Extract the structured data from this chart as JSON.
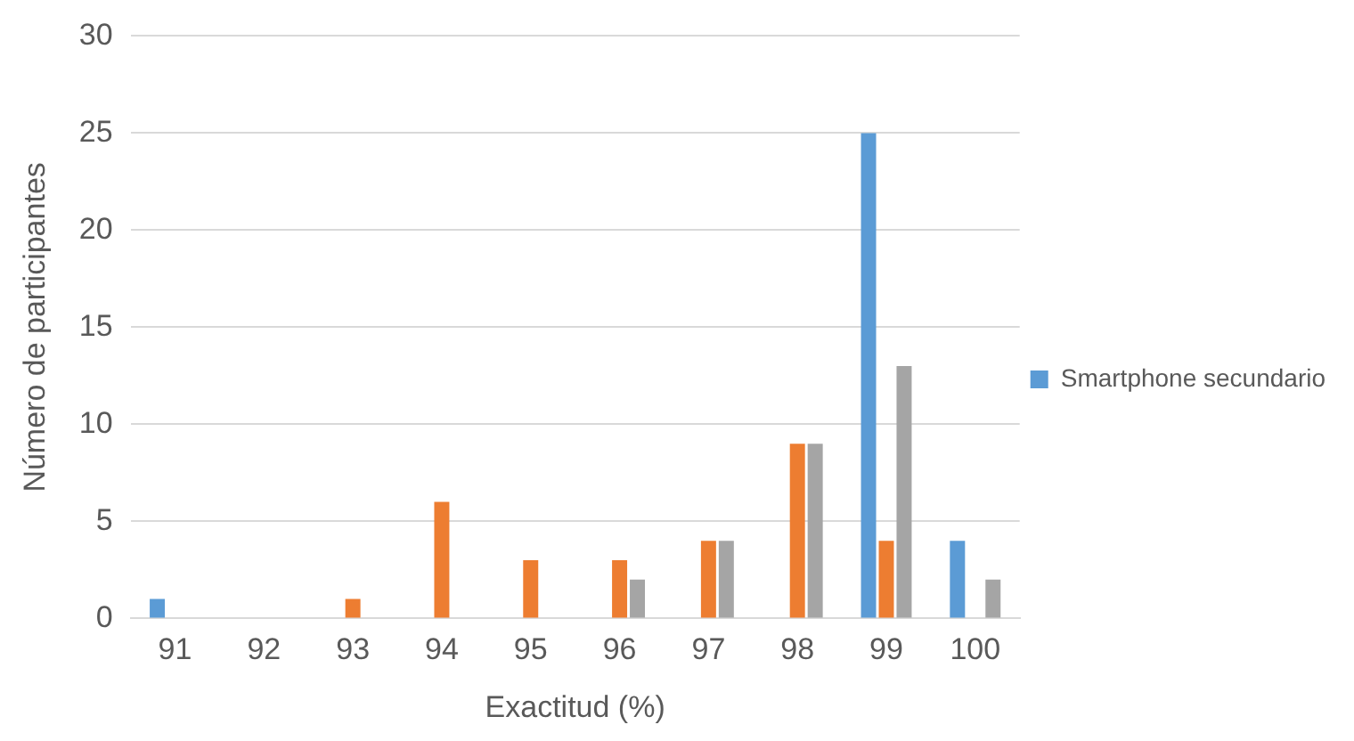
{
  "chart_data": {
    "type": "bar",
    "xlabel": "Exactitud (%)",
    "ylabel": "Número de participantes",
    "categories": [
      "91",
      "92",
      "93",
      "94",
      "95",
      "96",
      "97",
      "98",
      "99",
      "100"
    ],
    "series": [
      {
        "name": "Smartphone secundario",
        "color": "#5b9bd5",
        "values": [
          1,
          0,
          0,
          0,
          0,
          0,
          0,
          0,
          25,
          4
        ]
      },
      {
        "color": "#ed7d31",
        "values": [
          0,
          0,
          1,
          6,
          3,
          3,
          4,
          9,
          4,
          0
        ]
      },
      {
        "color": "#a5a5a5",
        "values": [
          0,
          0,
          0,
          0,
          0,
          2,
          4,
          9,
          13,
          2
        ]
      }
    ],
    "ylim": [
      0,
      30
    ],
    "yticks": [
      0,
      5,
      10,
      15,
      20,
      25,
      30
    ],
    "grid": "y",
    "legend": "right"
  }
}
